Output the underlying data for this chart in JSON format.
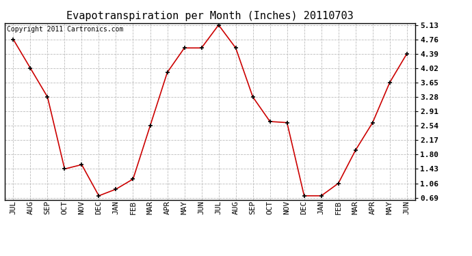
{
  "title": "Evapotranspiration per Month (Inches) 20110703",
  "copyright": "Copyright 2011 Cartronics.com",
  "months": [
    "JUL",
    "AUG",
    "SEP",
    "OCT",
    "NOV",
    "DEC",
    "JAN",
    "FEB",
    "MAR",
    "APR",
    "MAY",
    "JUN",
    "JUL",
    "AUG",
    "SEP",
    "OCT",
    "NOV",
    "DEC",
    "JAN",
    "FEB",
    "MAR",
    "APR",
    "MAY",
    "JUN"
  ],
  "values": [
    4.76,
    4.02,
    3.28,
    1.43,
    1.54,
    0.74,
    0.91,
    1.17,
    2.54,
    3.91,
    4.54,
    4.54,
    5.13,
    4.54,
    3.28,
    2.65,
    2.62,
    0.74,
    0.74,
    1.06,
    1.91,
    2.62,
    3.65,
    4.39
  ],
  "yticks": [
    0.69,
    1.06,
    1.43,
    1.8,
    2.17,
    2.54,
    2.91,
    3.28,
    3.65,
    4.02,
    4.39,
    4.76,
    5.13
  ],
  "line_color": "#cc0000",
  "marker": "+",
  "marker_color": "#000000",
  "bg_color": "#ffffff",
  "plot_bg_color": "#ffffff",
  "grid_color": "#bbbbbb",
  "title_fontsize": 11,
  "copyright_fontsize": 7,
  "tick_fontsize": 8,
  "ymin": 0.69,
  "ymax": 5.13
}
